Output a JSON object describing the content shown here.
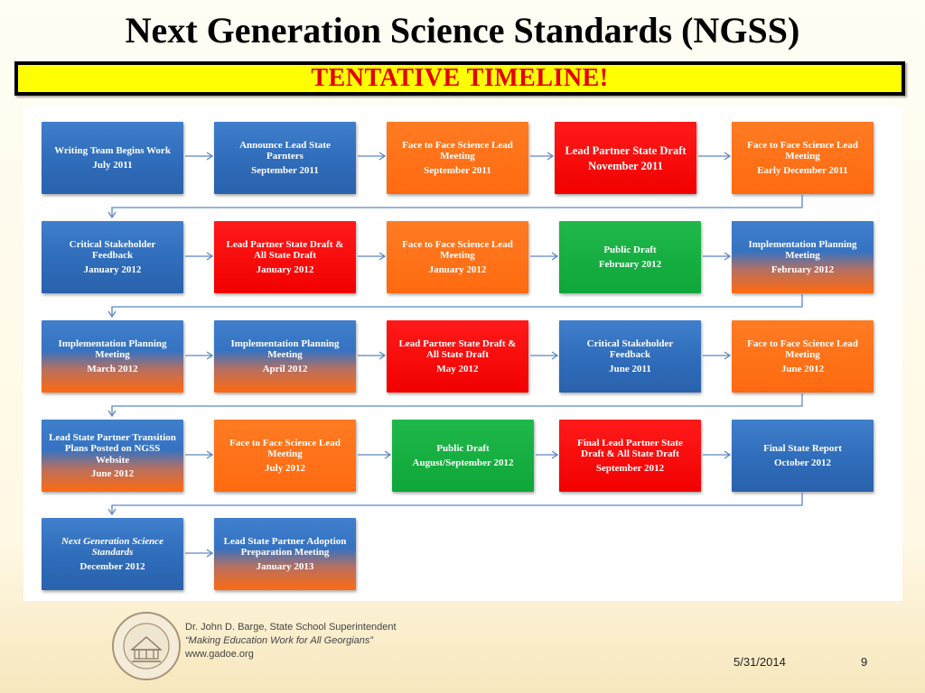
{
  "slide": {
    "title": "Next Generation Science Standards (NGSS)",
    "banner": "TENTATIVE  TIMELINE!",
    "date": "5/31/2014",
    "page_number": "9"
  },
  "colors": {
    "blue": "#2f6cba",
    "orange": "#ff6a10",
    "red": "#f20000",
    "green": "#0fa63a",
    "banner_yellow": "#ffff00",
    "banner_text": "#e40000"
  },
  "timeline": {
    "rows": [
      [
        {
          "title": "Writing Team Begins Work",
          "date": "July 2011",
          "color": "blue"
        },
        {
          "title": "Announce Lead State Parnters",
          "date": "September 2011",
          "color": "blue"
        },
        {
          "title": "Face to Face Science Lead Meeting",
          "date": "September 2011",
          "color": "orange"
        },
        {
          "title": "Lead Partner State Draft",
          "date": "November 2011",
          "color": "red",
          "large": true
        },
        {
          "title": "Face to Face Science Lead Meeting",
          "date": "Early December 2011",
          "color": "orange"
        }
      ],
      [
        {
          "title": "Critical Stakeholder Feedback",
          "date": "January 2012",
          "color": "blue"
        },
        {
          "title": "Lead Partner State Draft & All State Draft",
          "date": "January 2012",
          "color": "red"
        },
        {
          "title": "Face to Face Science Lead Meeting",
          "date": "January 2012",
          "color": "orange"
        },
        {
          "title": "Public Draft",
          "date": "February 2012",
          "color": "green"
        },
        {
          "title": "Implementation Planning Meeting",
          "date": "February 2012",
          "color": "blue-orange"
        }
      ],
      [
        {
          "title": "Implementation Planning Meeting",
          "date": "March 2012",
          "color": "blue-orange"
        },
        {
          "title": "Implementation Planning Meeting",
          "date": "April 2012",
          "color": "blue-orange"
        },
        {
          "title": "Lead Partner State Draft & All State Draft",
          "date": "May 2012",
          "color": "red"
        },
        {
          "title": "Critical Stakeholder Feedback",
          "date": "June 2011",
          "color": "blue"
        },
        {
          "title": "Face to Face Science Lead Meeting",
          "date": "June 2012",
          "color": "orange"
        }
      ],
      [
        {
          "title": "Lead State Partner Transition Plans Posted on NGSS Website",
          "date": "June 2012",
          "color": "blue-orange"
        },
        {
          "title": "Face to Face Science Lead Meeting",
          "date": "July 2012",
          "color": "orange"
        },
        {
          "title": "Public Draft",
          "date": "August/September 2012",
          "color": "green"
        },
        {
          "title": "Final Lead Partner State Draft  & All State Draft",
          "date": "September 2012",
          "color": "red"
        },
        {
          "title": "Final State Report",
          "date": "October 2012",
          "color": "blue"
        }
      ],
      [
        {
          "title": "Next Generation Science Standards",
          "date": "December 2012",
          "color": "blue",
          "italic": true
        },
        {
          "title": "Lead State Partner Adoption Preparation Meeting",
          "date": "January 2013",
          "color": "blue-orange"
        }
      ]
    ]
  },
  "footer": {
    "line1": "Dr. John D. Barge, State School Superintendent",
    "line2": "“Making Education Work for All Georgians”",
    "line3": "www.gadoe.org",
    "seal_text_top": "DEPARTMENT OF",
    "seal_text_bottom": "EDUCATION",
    "seal_year": "1776"
  }
}
